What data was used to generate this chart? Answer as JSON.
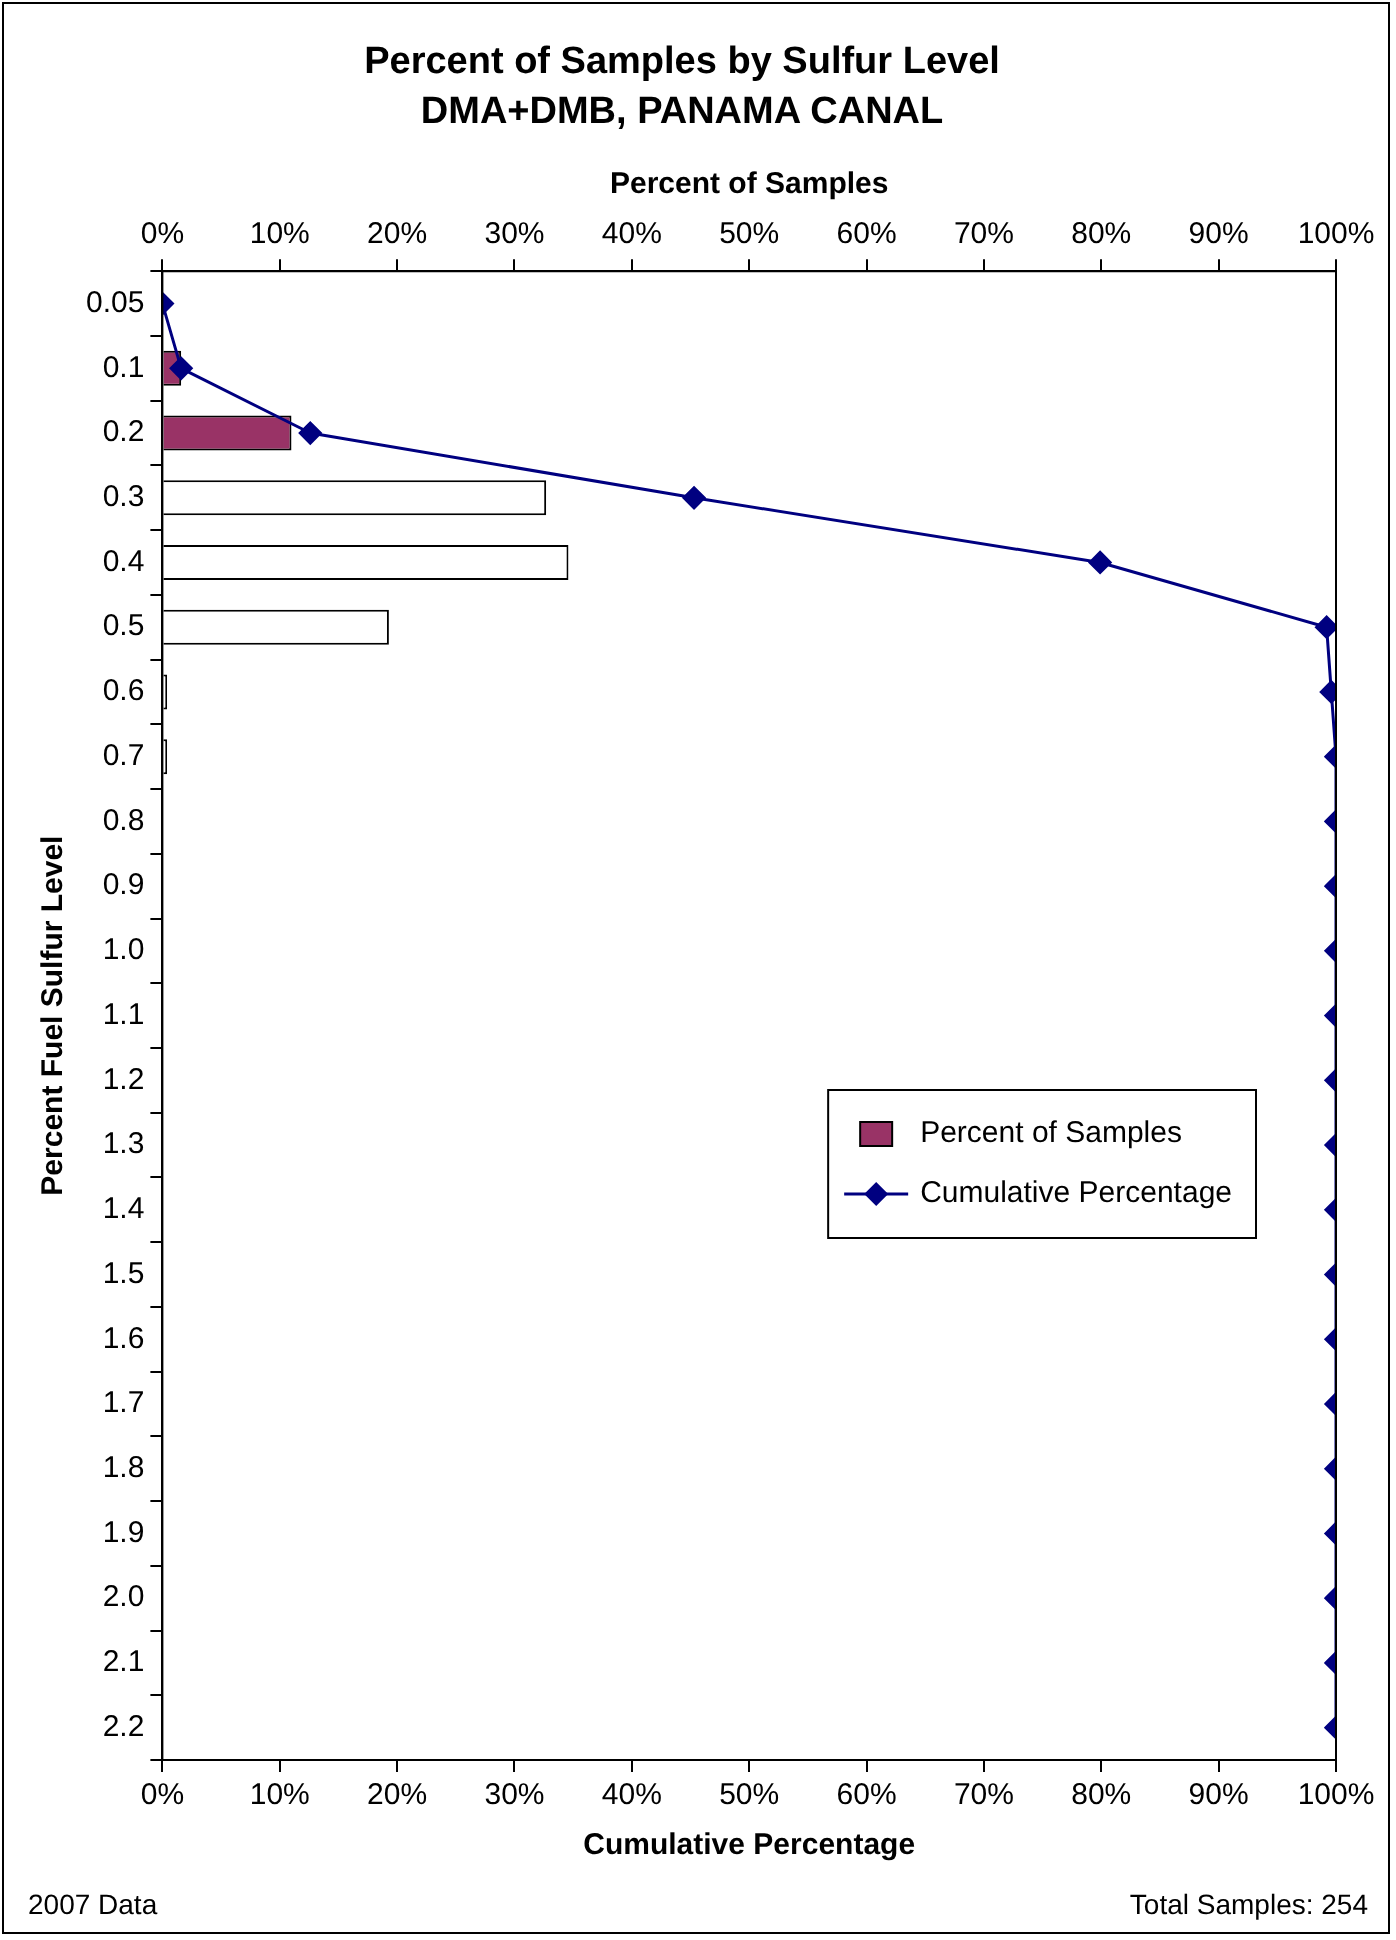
{
  "chart_data": {
    "type": "bar",
    "orientation": "horizontal",
    "title": "Percent of Samples by Sulfur Level",
    "subtitle": "DMA+DMB, PANAMA CANAL",
    "x2label": "Percent of Samples",
    "xlabel": "Cumulative Percentage",
    "ylabel": "Percent Fuel Sulfur Level",
    "categories": [
      "0.05",
      "0.1",
      "0.2",
      "0.3",
      "0.4",
      "0.5",
      "0.6",
      "0.7",
      "0.8",
      "0.9",
      "1.0",
      "1.1",
      "1.2",
      "1.3",
      "1.4",
      "1.5",
      "1.6",
      "1.7",
      "1.8",
      "1.9",
      "2.0",
      "2.1",
      "2.2"
    ],
    "series": [
      {
        "name": "Percent of Samples",
        "type": "bar",
        "axis": "x2",
        "color": "#993366",
        "colors": [
          "#ffffff",
          "#993366",
          "#993366",
          "#ffffff",
          "#ffffff",
          "#ffffff",
          "#ffffff",
          "#ffffff",
          "#ffffff",
          "#ffffff",
          "#ffffff",
          "#ffffff",
          "#ffffff",
          "#ffffff",
          "#ffffff",
          "#ffffff",
          "#ffffff",
          "#ffffff",
          "#ffffff",
          "#ffffff",
          "#ffffff",
          "#ffffff",
          "#ffffff"
        ],
        "values": [
          0,
          1.6,
          11,
          32.7,
          34.6,
          19.3,
          0.4,
          0.4,
          0,
          0,
          0,
          0,
          0,
          0,
          0,
          0,
          0,
          0,
          0,
          0,
          0,
          0,
          0
        ]
      },
      {
        "name": "Cumulative Percentage",
        "type": "line",
        "color": "#000080",
        "values": [
          0,
          1.6,
          12.6,
          45.3,
          79.9,
          99.2,
          99.6,
          100,
          100,
          100,
          100,
          100,
          100,
          100,
          100,
          100,
          100,
          100,
          100,
          100,
          100,
          100,
          100
        ]
      }
    ],
    "x2lim": [
      0,
      100
    ],
    "x2ticks": [
      {
        "value": 0,
        "label": "0%"
      },
      {
        "value": 10,
        "label": "10%"
      },
      {
        "value": 20,
        "label": "20%"
      },
      {
        "value": 30,
        "label": "30%"
      },
      {
        "value": 40,
        "label": "40%"
      },
      {
        "value": 50,
        "label": "50%"
      },
      {
        "value": 60,
        "label": "60%"
      },
      {
        "value": 70,
        "label": "70%"
      },
      {
        "value": 80,
        "label": "80%"
      },
      {
        "value": 90,
        "label": "90%"
      },
      {
        "value": 100,
        "label": "100%"
      }
    ],
    "xlim": [
      0,
      100
    ],
    "xticks": [
      {
        "value": 0,
        "label": "0%"
      },
      {
        "value": 10,
        "label": "10%"
      },
      {
        "value": 20,
        "label": "20%"
      },
      {
        "value": 30,
        "label": "30%"
      },
      {
        "value": 40,
        "label": "40%"
      },
      {
        "value": 50,
        "label": "50%"
      },
      {
        "value": 60,
        "label": "60%"
      },
      {
        "value": 70,
        "label": "70%"
      },
      {
        "value": 80,
        "label": "80%"
      },
      {
        "value": 90,
        "label": "90%"
      },
      {
        "value": 100,
        "label": "100%"
      }
    ],
    "annotations": [
      "2007 Data",
      "Total Samples: 254"
    ],
    "marker": "diamond",
    "grid": false,
    "legend": "right"
  }
}
